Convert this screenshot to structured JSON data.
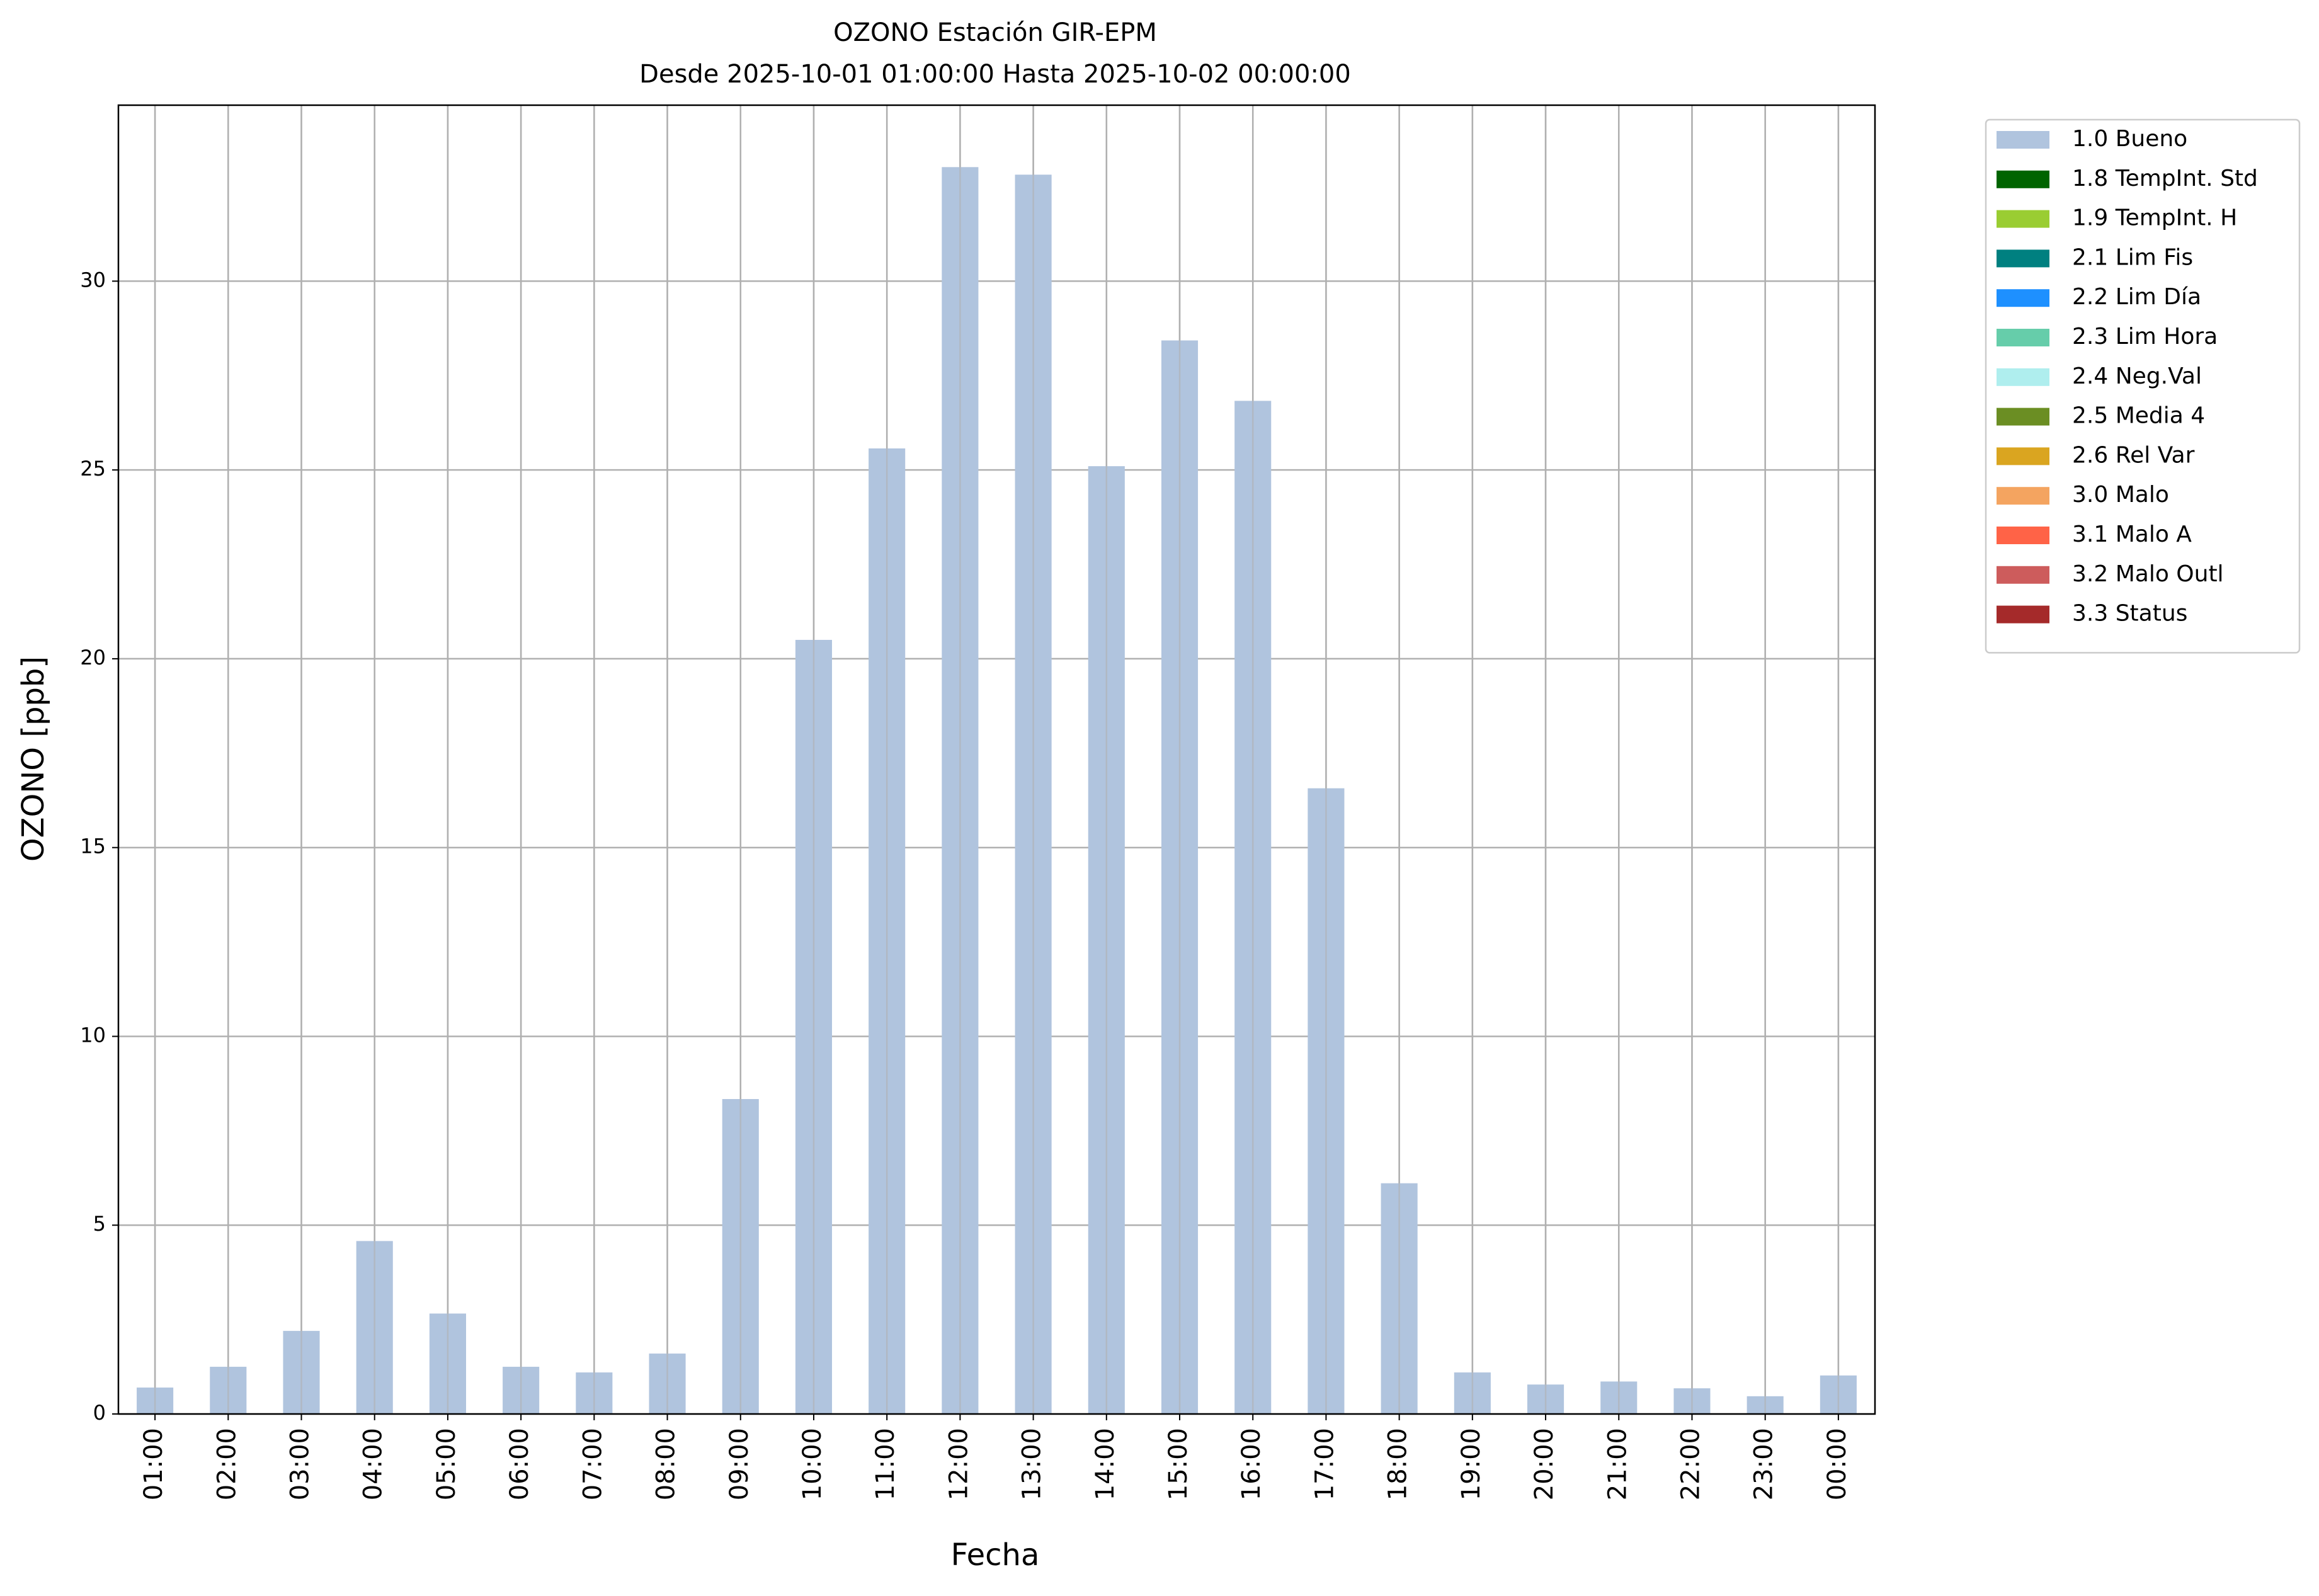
{
  "chart_data": {
    "type": "bar",
    "title": "OZONO Estación GIR-EPM",
    "subtitle": "Desde 2025-10-01 01:00:00 Hasta 2025-10-02 00:00:00",
    "x_label": "Fecha",
    "y_label": "OZONO [ppb]",
    "categories": [
      "01:00",
      "02:00",
      "03:00",
      "04:00",
      "05:00",
      "06:00",
      "07:00",
      "08:00",
      "09:00",
      "10:00",
      "11:00",
      "12:00",
      "13:00",
      "14:00",
      "15:00",
      "16:00",
      "17:00",
      "18:00",
      "19:00",
      "20:00",
      "21:00",
      "22:00",
      "23:00",
      "00:00"
    ],
    "series": [
      {
        "name": "1.0 Bueno",
        "color": "#b0c4de",
        "values": [
          0.7,
          1.25,
          2.2,
          4.58,
          2.66,
          1.25,
          1.1,
          1.6,
          8.34,
          20.5,
          25.57,
          33.02,
          32.82,
          25.1,
          28.43,
          26.83,
          16.57,
          6.11,
          1.1,
          0.78,
          0.86,
          0.68,
          0.47,
          1.02
        ]
      }
    ],
    "legend_entries": [
      {
        "name": "1.8 TempInt. Std",
        "color": "#006400"
      },
      {
        "name": "1.9 TempInt. H",
        "color": "#9acd32"
      },
      {
        "name": "2.1 Lim Fis",
        "color": "#008080"
      },
      {
        "name": "2.2 Lim Día",
        "color": "#1e90ff"
      },
      {
        "name": "2.3 Lim Hora",
        "color": "#66cdaa"
      },
      {
        "name": "2.4 Neg.Val",
        "color": "#afeeee"
      },
      {
        "name": "2.5 Media 4",
        "color": "#6b8e23"
      },
      {
        "name": "2.6 Rel Var",
        "color": "#daa520"
      },
      {
        "name": "3.0 Malo",
        "color": "#f4a460"
      },
      {
        "name": "3.1 Malo A",
        "color": "#ff6347"
      },
      {
        "name": "3.2 Malo Outl",
        "color": "#cd5c5c"
      },
      {
        "name": "3.3 Status",
        "color": "#a52a2a"
      }
    ],
    "ylim": [
      0,
      34.66
    ],
    "yticks": [
      0,
      5,
      10,
      15,
      20,
      25,
      30
    ],
    "grid": true,
    "legend_position": "outside-right"
  }
}
